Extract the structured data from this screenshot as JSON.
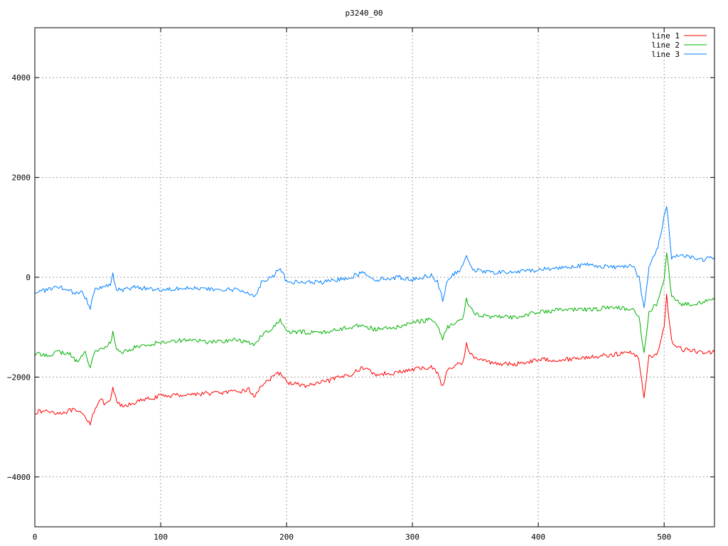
{
  "chart_data": {
    "type": "line",
    "title": "p3240_00",
    "xlabel": "",
    "ylabel": "",
    "xlim": [
      0,
      540
    ],
    "ylim": [
      -5000,
      5000
    ],
    "xticks": [
      "0",
      "100",
      "200",
      "300",
      "400",
      "500"
    ],
    "yticks": [
      "-4000",
      "-2000",
      "0",
      "2000",
      "4000"
    ],
    "grid": true,
    "legend_position": "top-right",
    "series": [
      {
        "name": "line 1",
        "color": "#ff0000",
        "points": [
          [
            0,
            -2700
          ],
          [
            10,
            -2680
          ],
          [
            20,
            -2720
          ],
          [
            30,
            -2660
          ],
          [
            38,
            -2750
          ],
          [
            44,
            -2920
          ],
          [
            48,
            -2600
          ],
          [
            52,
            -2450
          ],
          [
            56,
            -2550
          ],
          [
            60,
            -2500
          ],
          [
            62,
            -2200
          ],
          [
            65,
            -2500
          ],
          [
            70,
            -2600
          ],
          [
            80,
            -2500
          ],
          [
            100,
            -2380
          ],
          [
            120,
            -2350
          ],
          [
            140,
            -2320
          ],
          [
            160,
            -2300
          ],
          [
            170,
            -2250
          ],
          [
            175,
            -2400
          ],
          [
            180,
            -2150
          ],
          [
            190,
            -2000
          ],
          [
            195,
            -1900
          ],
          [
            200,
            -2100
          ],
          [
            215,
            -2180
          ],
          [
            230,
            -2100
          ],
          [
            250,
            -1950
          ],
          [
            262,
            -1800
          ],
          [
            270,
            -1950
          ],
          [
            290,
            -1900
          ],
          [
            300,
            -1850
          ],
          [
            315,
            -1800
          ],
          [
            320,
            -1900
          ],
          [
            324,
            -2200
          ],
          [
            328,
            -1850
          ],
          [
            340,
            -1700
          ],
          [
            343,
            -1350
          ],
          [
            348,
            -1600
          ],
          [
            360,
            -1700
          ],
          [
            380,
            -1750
          ],
          [
            400,
            -1650
          ],
          [
            420,
            -1650
          ],
          [
            440,
            -1600
          ],
          [
            460,
            -1550
          ],
          [
            475,
            -1500
          ],
          [
            480,
            -1650
          ],
          [
            484,
            -2400
          ],
          [
            488,
            -1600
          ],
          [
            495,
            -1500
          ],
          [
            500,
            -1000
          ],
          [
            502,
            -380
          ],
          [
            506,
            -1300
          ],
          [
            515,
            -1450
          ],
          [
            530,
            -1500
          ],
          [
            540,
            -1500
          ]
        ]
      },
      {
        "name": "line 2",
        "color": "#00b000",
        "points": [
          [
            0,
            -1550
          ],
          [
            10,
            -1550
          ],
          [
            20,
            -1500
          ],
          [
            28,
            -1550
          ],
          [
            34,
            -1700
          ],
          [
            40,
            -1500
          ],
          [
            44,
            -1800
          ],
          [
            48,
            -1450
          ],
          [
            55,
            -1450
          ],
          [
            60,
            -1300
          ],
          [
            62,
            -1120
          ],
          [
            65,
            -1450
          ],
          [
            70,
            -1500
          ],
          [
            80,
            -1400
          ],
          [
            100,
            -1300
          ],
          [
            120,
            -1250
          ],
          [
            140,
            -1300
          ],
          [
            160,
            -1250
          ],
          [
            175,
            -1350
          ],
          [
            180,
            -1150
          ],
          [
            190,
            -1000
          ],
          [
            195,
            -850
          ],
          [
            200,
            -1100
          ],
          [
            215,
            -1100
          ],
          [
            230,
            -1100
          ],
          [
            250,
            -1000
          ],
          [
            260,
            -950
          ],
          [
            270,
            -1050
          ],
          [
            290,
            -1000
          ],
          [
            300,
            -900
          ],
          [
            315,
            -850
          ],
          [
            320,
            -950
          ],
          [
            324,
            -1250
          ],
          [
            328,
            -1000
          ],
          [
            340,
            -800
          ],
          [
            343,
            -450
          ],
          [
            348,
            -700
          ],
          [
            360,
            -800
          ],
          [
            380,
            -800
          ],
          [
            400,
            -700
          ],
          [
            420,
            -650
          ],
          [
            440,
            -650
          ],
          [
            460,
            -600
          ],
          [
            475,
            -650
          ],
          [
            480,
            -800
          ],
          [
            484,
            -1550
          ],
          [
            488,
            -700
          ],
          [
            495,
            -500
          ],
          [
            500,
            -50
          ],
          [
            502,
            500
          ],
          [
            506,
            -400
          ],
          [
            515,
            -550
          ],
          [
            530,
            -500
          ],
          [
            540,
            -450
          ]
        ]
      },
      {
        "name": "line 3",
        "color": "#0080ff",
        "points": [
          [
            0,
            -300
          ],
          [
            10,
            -250
          ],
          [
            20,
            -200
          ],
          [
            30,
            -300
          ],
          [
            38,
            -300
          ],
          [
            44,
            -600
          ],
          [
            48,
            -200
          ],
          [
            54,
            -200
          ],
          [
            60,
            -150
          ],
          [
            62,
            50
          ],
          [
            65,
            -250
          ],
          [
            70,
            -250
          ],
          [
            80,
            -200
          ],
          [
            100,
            -250
          ],
          [
            120,
            -200
          ],
          [
            140,
            -250
          ],
          [
            160,
            -250
          ],
          [
            170,
            -300
          ],
          [
            175,
            -400
          ],
          [
            180,
            -100
          ],
          [
            190,
            50
          ],
          [
            195,
            200
          ],
          [
            200,
            -100
          ],
          [
            215,
            -100
          ],
          [
            230,
            -100
          ],
          [
            250,
            0
          ],
          [
            262,
            100
          ],
          [
            270,
            -50
          ],
          [
            290,
            0
          ],
          [
            300,
            -50
          ],
          [
            315,
            50
          ],
          [
            320,
            -100
          ],
          [
            324,
            -450
          ],
          [
            328,
            -50
          ],
          [
            340,
            200
          ],
          [
            343,
            450
          ],
          [
            348,
            150
          ],
          [
            360,
            100
          ],
          [
            380,
            100
          ],
          [
            400,
            150
          ],
          [
            420,
            200
          ],
          [
            440,
            250
          ],
          [
            460,
            200
          ],
          [
            475,
            250
          ],
          [
            480,
            0
          ],
          [
            484,
            -650
          ],
          [
            488,
            200
          ],
          [
            495,
            600
          ],
          [
            500,
            1200
          ],
          [
            502,
            1450
          ],
          [
            506,
            400
          ],
          [
            515,
            450
          ],
          [
            530,
            350
          ],
          [
            540,
            400
          ]
        ]
      }
    ]
  }
}
